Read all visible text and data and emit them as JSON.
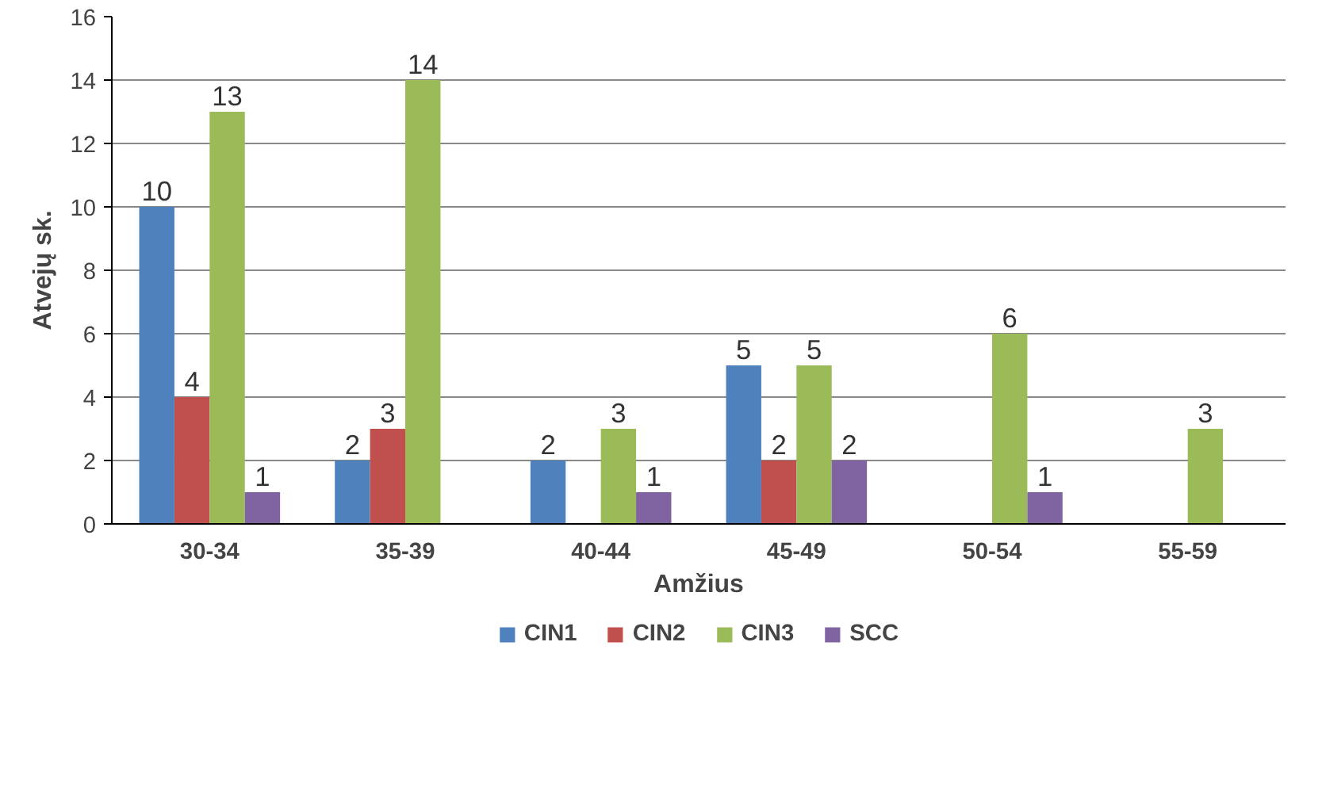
{
  "chart_data": {
    "type": "bar",
    "xlabel": "Amžius",
    "ylabel": "Atvejų sk.",
    "categories": [
      "30-34",
      "35-39",
      "40-44",
      "45-49",
      "50-54",
      "55-59"
    ],
    "series": [
      {
        "name": "CIN1",
        "color": "#4f81bd",
        "values": [
          10,
          2,
          2,
          5,
          null,
          null
        ]
      },
      {
        "name": "CIN2",
        "color": "#c0504d",
        "values": [
          4,
          3,
          null,
          2,
          null,
          null
        ]
      },
      {
        "name": "CIN3",
        "color": "#9bbb59",
        "values": [
          13,
          14,
          3,
          5,
          6,
          3
        ]
      },
      {
        "name": "SCC",
        "color": "#8064a2",
        "values": [
          1,
          null,
          1,
          2,
          1,
          null
        ]
      }
    ],
    "ylim": [
      0,
      16
    ],
    "yticks": [
      0,
      2,
      4,
      6,
      8,
      10,
      12,
      14,
      16
    ],
    "grid": "y",
    "legend": "bottom",
    "data_labels": true
  }
}
